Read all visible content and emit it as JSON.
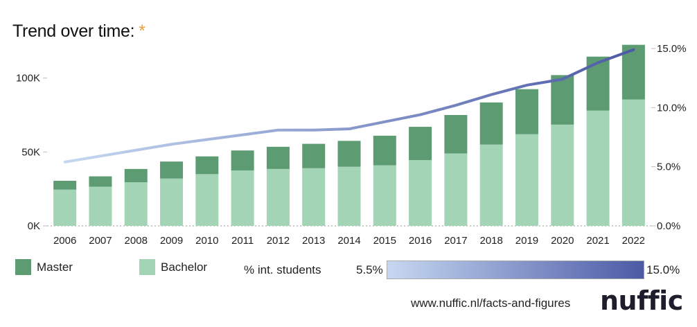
{
  "title": "Trend over time:",
  "title_marker": "*",
  "chart_data": {
    "type": "bar",
    "stacked": true,
    "categories": [
      "2006",
      "2007",
      "2008",
      "2009",
      "2010",
      "2011",
      "2012",
      "2013",
      "2014",
      "2015",
      "2016",
      "2017",
      "2018",
      "2019",
      "2020",
      "2021",
      "2022"
    ],
    "series": [
      {
        "name": "Bachelor",
        "color": "#a3d4b6",
        "values": [
          24500,
          26500,
          29500,
          32000,
          35000,
          37500,
          38500,
          39000,
          40000,
          41000,
          44500,
          49000,
          55000,
          62000,
          68500,
          78000,
          85500
        ]
      },
      {
        "name": "Master",
        "color": "#5d9b72",
        "values": [
          6000,
          7000,
          9000,
          11500,
          12000,
          13500,
          15000,
          16500,
          17500,
          20000,
          22500,
          26000,
          28500,
          30500,
          33500,
          36500,
          37000
        ]
      }
    ],
    "line": {
      "name": "% int. students",
      "values": [
        5.4,
        5.9,
        6.4,
        6.9,
        7.3,
        7.7,
        8.1,
        8.1,
        8.2,
        8.8,
        9.4,
        10.2,
        11.1,
        11.9,
        12.4,
        13.8,
        14.9
      ]
    },
    "ylim_left": [
      0,
      120000
    ],
    "yticks_left": [
      {
        "v": 0,
        "label": "0K"
      },
      {
        "v": 50000,
        "label": "50K"
      },
      {
        "v": 100000,
        "label": "100K"
      }
    ],
    "ylim_right": [
      0,
      15
    ],
    "yticks_right": [
      {
        "v": 0,
        "label": "0.0%"
      },
      {
        "v": 5,
        "label": "5.0%"
      },
      {
        "v": 10,
        "label": "10.0%"
      },
      {
        "v": 15,
        "label": "15.0%"
      }
    ],
    "legend_placement": "bottom-left"
  },
  "legend": {
    "master": "Master",
    "bachelor": "Bachelor",
    "master_color": "#5d9b72",
    "bachelor_color": "#a3d4b6"
  },
  "gradient_legend": {
    "label": "% int. students",
    "min_label": "5.5%",
    "max_label": "15.0%",
    "start_color": "#c6d8f1",
    "end_color": "#4c5aa6"
  },
  "source": "www.nuffic.nl/facts-and-figures",
  "logo": "nuffic"
}
